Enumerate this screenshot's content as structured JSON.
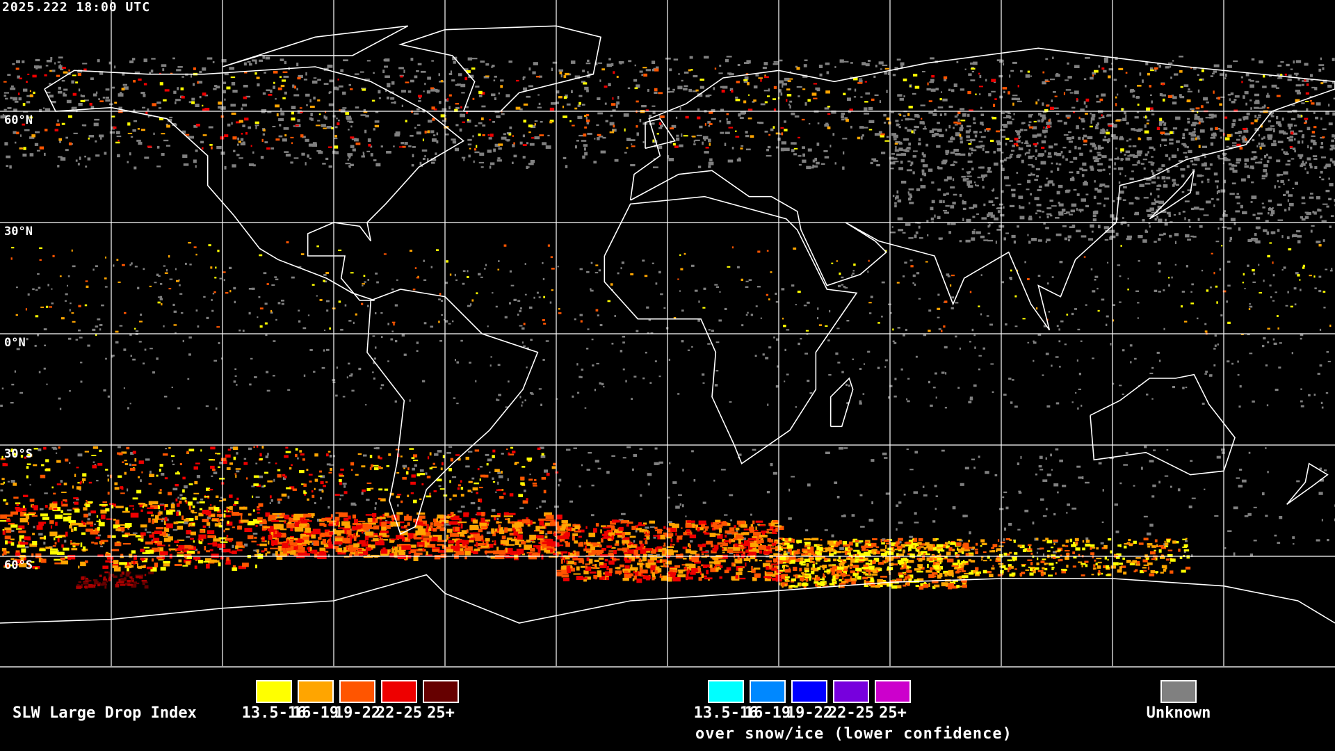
{
  "header": {
    "timestamp": "2025.222 18:00 UTC"
  },
  "map": {
    "projection": "equirectangular",
    "lat_labels": [
      "60°N",
      "30°N",
      "0°N",
      "30°S",
      "60°S"
    ],
    "grid_spacing_degrees": 30
  },
  "legend": {
    "title": "SLW Large Drop Index",
    "primary": [
      {
        "label": "13.5-16",
        "color": "#ffff00"
      },
      {
        "label": "16-19",
        "color": "#ffa500"
      },
      {
        "label": "19-22",
        "color": "#ff5500"
      },
      {
        "label": "22-25",
        "color": "#ee0000"
      },
      {
        "label": "25+",
        "color": "#660000"
      }
    ],
    "snow_ice": [
      {
        "label": "13.5-16",
        "color": "#00ffff"
      },
      {
        "label": "16-19",
        "color": "#0088ff"
      },
      {
        "label": "19-22",
        "color": "#0000ff"
      },
      {
        "label": "22-25",
        "color": "#7700dd"
      },
      {
        "label": "25+",
        "color": "#cc00cc"
      }
    ],
    "snow_ice_note": "over snow/ice (lower confidence)",
    "unknown": {
      "label": "Unknown",
      "color": "#808080"
    }
  }
}
